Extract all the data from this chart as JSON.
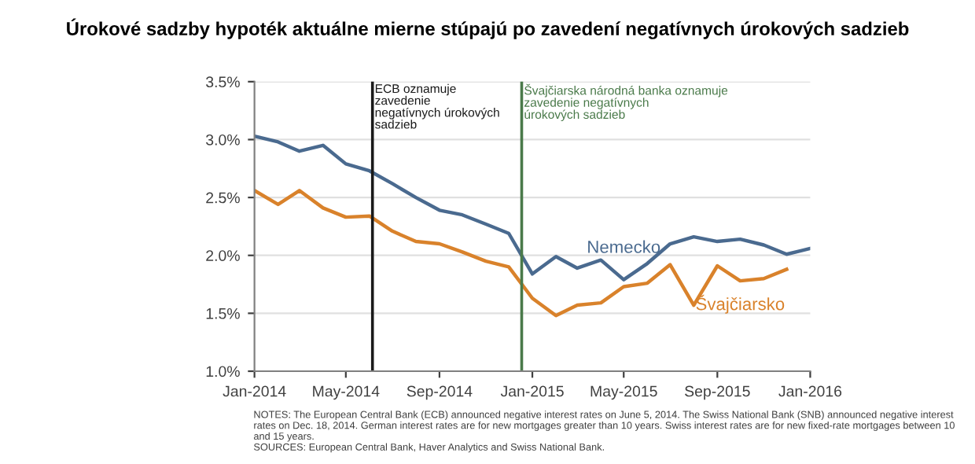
{
  "chart_data": {
    "type": "line",
    "title": "Úrokové sadzby hypoték aktuálne mierne stúpajú po zavedení negatívnych úrokových sadzieb",
    "x": [
      "2014-01",
      "2014-02",
      "2014-03",
      "2014-04",
      "2014-05",
      "2014-06",
      "2014-07",
      "2014-08",
      "2014-09",
      "2014-10",
      "2014-11",
      "2014-12",
      "2015-01",
      "2015-02",
      "2015-03",
      "2015-04",
      "2015-05",
      "2015-06",
      "2015-07",
      "2015-08",
      "2015-09",
      "2015-10",
      "2015-11",
      "2015-12",
      "2016-01"
    ],
    "series": [
      {
        "name": "Nemecko",
        "color": "#4a6a8f",
        "values": [
          3.03,
          2.98,
          2.9,
          2.95,
          2.79,
          2.73,
          2.62,
          2.5,
          2.39,
          2.35,
          2.27,
          2.19,
          1.84,
          1.99,
          1.89,
          1.96,
          1.79,
          1.93,
          2.1,
          2.16,
          2.12,
          2.14,
          2.09,
          2.01,
          2.06
        ]
      },
      {
        "name": "Švajčiarsko",
        "color": "#d9822b",
        "values": [
          2.56,
          2.44,
          2.56,
          2.41,
          2.33,
          2.34,
          2.21,
          2.12,
          2.1,
          2.03,
          1.95,
          1.9,
          1.63,
          1.48,
          1.57,
          1.59,
          1.73,
          1.76,
          1.92,
          1.57,
          1.91,
          1.78,
          1.8,
          1.88,
          null
        ]
      }
    ],
    "xlim": [
      "2014-01",
      "2016-01"
    ],
    "xticks": [
      {
        "value": "2014-01",
        "label": "Jan-2014"
      },
      {
        "value": "2014-05",
        "label": "May-2014"
      },
      {
        "value": "2014-09",
        "label": "Sep-2014"
      },
      {
        "value": "2015-01",
        "label": "Jan-2015"
      },
      {
        "value": "2015-05",
        "label": "May-2015"
      },
      {
        "value": "2015-09",
        "label": "Sep-2015"
      },
      {
        "value": "2016-01",
        "label": "Jan-2016"
      }
    ],
    "ylim": [
      1.0,
      3.5
    ],
    "yticks": [
      {
        "value": 1.0,
        "label": "1.0%"
      },
      {
        "value": 1.5,
        "label": "1.5%"
      },
      {
        "value": 2.0,
        "label": "2.0%"
      },
      {
        "value": 2.5,
        "label": "2.5%"
      },
      {
        "value": 3.0,
        "label": "3.0%"
      },
      {
        "value": 3.5,
        "label": "3.5%"
      }
    ],
    "grid": "y",
    "legend": false,
    "ref_lines": [
      {
        "axis": "x",
        "value": "2014-06-05",
        "label": "ECB oznamuje\nzavedenie\nnegatívnych úrokových\nsadzieb",
        "color": "#1a1a1a"
      },
      {
        "axis": "x",
        "value": "2014-12-18",
        "label": "Švajčiarska národná banka oznamuje\nzavedenie negatívnych\núrokových sadzieb",
        "color": "#4a7a4a"
      }
    ],
    "annotations": [
      "NOTES: The European Central Bank (ECB) announced negative interest rates on June 5, 2014. The Swiss National Bank (SNB) announced negative interest rates on Dec. 18, 2014. German interest rates are for new mortgages greater than 10 years. Swiss interest rates are for new fixed-rate mortgages between 10 and 15 years.",
      "SOURCES: European Central Bank, Haver Analytics and Swiss National Bank."
    ]
  }
}
